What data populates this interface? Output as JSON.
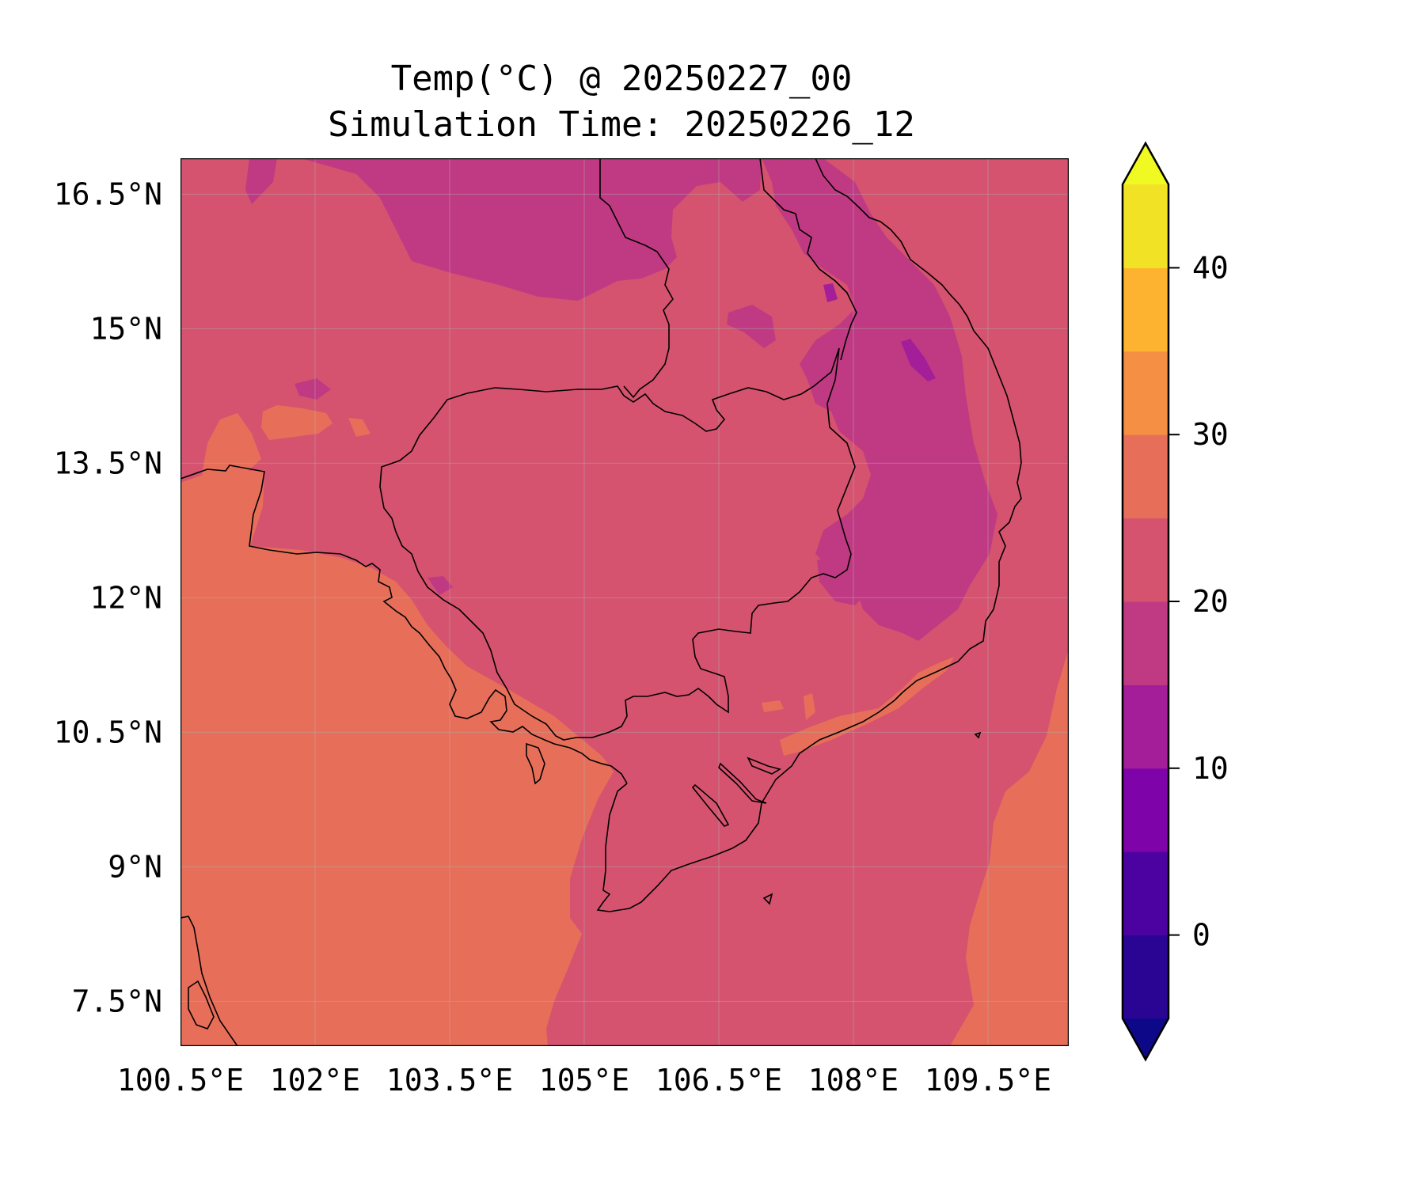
{
  "title": {
    "line1": "Temp(°C) @ 20250227_00",
    "line2": "Simulation Time: 20250226_12"
  },
  "map": {
    "lon_range": [
      100.5,
      110.4
    ],
    "lat_range": [
      7.0,
      16.9
    ],
    "x_ticks": [
      {
        "value": 100.5,
        "label": "100.5°E"
      },
      {
        "value": 102.0,
        "label": "102°E"
      },
      {
        "value": 103.5,
        "label": "103.5°E"
      },
      {
        "value": 105.0,
        "label": "105°E"
      },
      {
        "value": 106.5,
        "label": "106.5°E"
      },
      {
        "value": 108.0,
        "label": "108°E"
      },
      {
        "value": 109.5,
        "label": "109.5°E"
      }
    ],
    "y_ticks": [
      {
        "value": 7.5,
        "label": "7.5°N"
      },
      {
        "value": 9.0,
        "label": "9°N"
      },
      {
        "value": 10.5,
        "label": "10.5°N"
      },
      {
        "value": 12.0,
        "label": "12°N"
      },
      {
        "value": 13.5,
        "label": "13.5°N"
      },
      {
        "value": 15.0,
        "label": "15°N"
      },
      {
        "value": 16.5,
        "label": "16.5°N"
      }
    ],
    "gridlines": true
  },
  "colorbar": {
    "min": -5,
    "max": 45,
    "extend": "both",
    "levels": [
      {
        "from": -5,
        "to": 0,
        "color": "#2a0593"
      },
      {
        "from": 0,
        "to": 5,
        "color": "#4c02a1"
      },
      {
        "from": 5,
        "to": 10,
        "color": "#7e03a8"
      },
      {
        "from": 10,
        "to": 15,
        "color": "#a41e9a"
      },
      {
        "from": 15,
        "to": 20,
        "color": "#c03a83"
      },
      {
        "from": 20,
        "to": 25,
        "color": "#d5536f"
      },
      {
        "from": 25,
        "to": 30,
        "color": "#e76f5a"
      },
      {
        "from": 30,
        "to": 35,
        "color": "#f48f43"
      },
      {
        "from": 35,
        "to": 40,
        "color": "#fdb32f"
      },
      {
        "from": 40,
        "to": 45,
        "color": "#f2e226"
      }
    ],
    "under_color": "#0d0887",
    "over_color": "#f0f921",
    "ticks": [
      {
        "value": 0,
        "label": "0"
      },
      {
        "value": 10,
        "label": "10"
      },
      {
        "value": 20,
        "label": "20"
      },
      {
        "value": 30,
        "label": "30"
      },
      {
        "value": 40,
        "label": "40"
      }
    ]
  },
  "colors": {
    "background_field": "#d5536f",
    "warm_sea": "#e76f5a",
    "cool_highland": "#c03a83",
    "cold_peak": "#a41e9a",
    "coastline": "#000000"
  }
}
